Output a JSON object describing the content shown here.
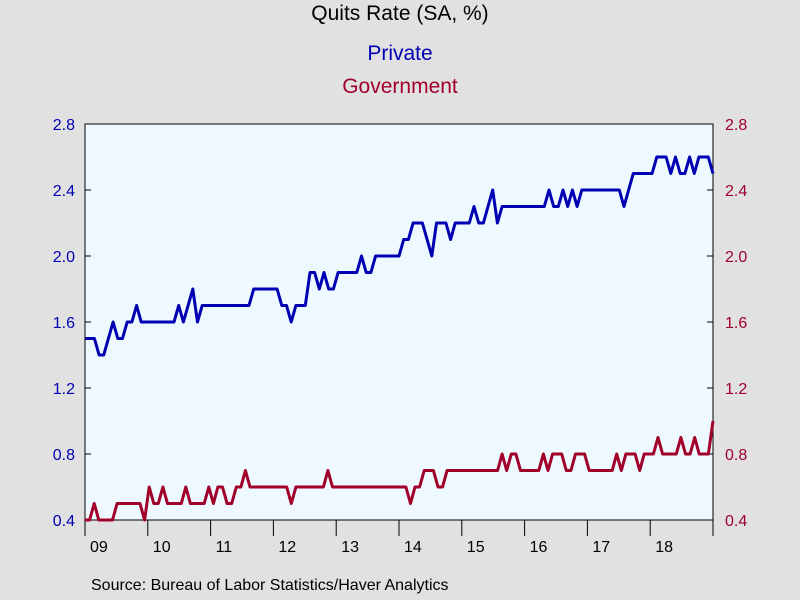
{
  "chart_data": {
    "type": "line",
    "title": "Quits Rate (SA, %)",
    "series": [
      {
        "name": "Private",
        "color": "#0000b3",
        "axis": "left",
        "values": [
          1.5,
          1.5,
          1.5,
          1.4,
          1.4,
          1.5,
          1.6,
          1.5,
          1.5,
          1.6,
          1.6,
          1.7,
          1.6,
          1.6,
          1.6,
          1.6,
          1.6,
          1.6,
          1.6,
          1.6,
          1.7,
          1.6,
          1.7,
          1.8,
          1.6,
          1.7,
          1.7,
          1.7,
          1.7,
          1.7,
          1.7,
          1.7,
          1.7,
          1.7,
          1.7,
          1.7,
          1.8,
          1.8,
          1.8,
          1.8,
          1.8,
          1.8,
          1.7,
          1.7,
          1.6,
          1.7,
          1.7,
          1.7,
          1.9,
          1.9,
          1.8,
          1.9,
          1.8,
          1.8,
          1.9,
          1.9,
          1.9,
          1.9,
          1.9,
          2.0,
          1.9,
          1.9,
          2.0,
          2.0,
          2.0,
          2.0,
          2.0,
          2.0,
          2.1,
          2.1,
          2.2,
          2.2,
          2.2,
          2.1,
          2.0,
          2.2,
          2.2,
          2.2,
          2.1,
          2.2,
          2.2,
          2.2,
          2.2,
          2.3,
          2.2,
          2.2,
          2.3,
          2.4,
          2.2,
          2.3,
          2.3,
          2.3,
          2.3,
          2.3,
          2.3,
          2.3,
          2.3,
          2.3,
          2.3,
          2.4,
          2.3,
          2.3,
          2.4,
          2.3,
          2.4,
          2.3,
          2.4,
          2.4,
          2.4,
          2.4,
          2.4,
          2.4,
          2.4,
          2.4,
          2.4,
          2.3,
          2.4,
          2.5,
          2.5,
          2.5,
          2.5,
          2.5,
          2.6,
          2.6,
          2.6,
          2.5,
          2.6,
          2.5,
          2.5,
          2.6,
          2.5,
          2.6,
          2.6,
          2.6,
          2.5
        ]
      },
      {
        "name": "Government",
        "color": "#a0002a",
        "axis": "right",
        "values": [
          0.4,
          0.4,
          0.5,
          0.4,
          0.4,
          0.4,
          0.4,
          0.5,
          0.5,
          0.5,
          0.5,
          0.5,
          0.5,
          0.4,
          0.6,
          0.5,
          0.5,
          0.6,
          0.5,
          0.5,
          0.5,
          0.5,
          0.6,
          0.5,
          0.5,
          0.5,
          0.5,
          0.6,
          0.5,
          0.6,
          0.6,
          0.5,
          0.5,
          0.6,
          0.6,
          0.7,
          0.6,
          0.6,
          0.6,
          0.6,
          0.6,
          0.6,
          0.6,
          0.6,
          0.6,
          0.5,
          0.6,
          0.6,
          0.6,
          0.6,
          0.6,
          0.6,
          0.6,
          0.7,
          0.6,
          0.6,
          0.6,
          0.6,
          0.6,
          0.6,
          0.6,
          0.6,
          0.6,
          0.6,
          0.6,
          0.6,
          0.6,
          0.6,
          0.6,
          0.6,
          0.6,
          0.5,
          0.6,
          0.6,
          0.7,
          0.7,
          0.7,
          0.6,
          0.6,
          0.7,
          0.7,
          0.7,
          0.7,
          0.7,
          0.7,
          0.7,
          0.7,
          0.7,
          0.7,
          0.7,
          0.7,
          0.8,
          0.7,
          0.8,
          0.8,
          0.7,
          0.7,
          0.7,
          0.7,
          0.7,
          0.8,
          0.7,
          0.8,
          0.8,
          0.8,
          0.7,
          0.7,
          0.8,
          0.8,
          0.8,
          0.7,
          0.7,
          0.7,
          0.7,
          0.7,
          0.7,
          0.8,
          0.7,
          0.8,
          0.8,
          0.8,
          0.7,
          0.8,
          0.8,
          0.8,
          0.9,
          0.8,
          0.8,
          0.8,
          0.8,
          0.9,
          0.8,
          0.8,
          0.9,
          0.8,
          0.8,
          0.8,
          1.0
        ]
      }
    ],
    "x_start_year": 2009,
    "x_end_year": 2019,
    "x_tick_labels": [
      "09",
      "10",
      "11",
      "12",
      "13",
      "14",
      "15",
      "16",
      "17",
      "18"
    ],
    "y_left": {
      "min": 0.4,
      "max": 2.8,
      "ticks": [
        "0.4",
        "0.8",
        "1.2",
        "1.6",
        "2.0",
        "2.4",
        "2.8"
      ]
    },
    "y_right": {
      "min": 0.4,
      "max": 2.8,
      "ticks": [
        "0.4",
        "0.8",
        "1.2",
        "1.6",
        "2.0",
        "2.4",
        "2.8"
      ]
    },
    "source": "Source:  Bureau of Labor Statistics/Haver Analytics",
    "background": "#e1e1e1",
    "plot_background": "#eef8ff",
    "axis_color_left": "#0000b3",
    "axis_color_right": "#a0002a"
  }
}
